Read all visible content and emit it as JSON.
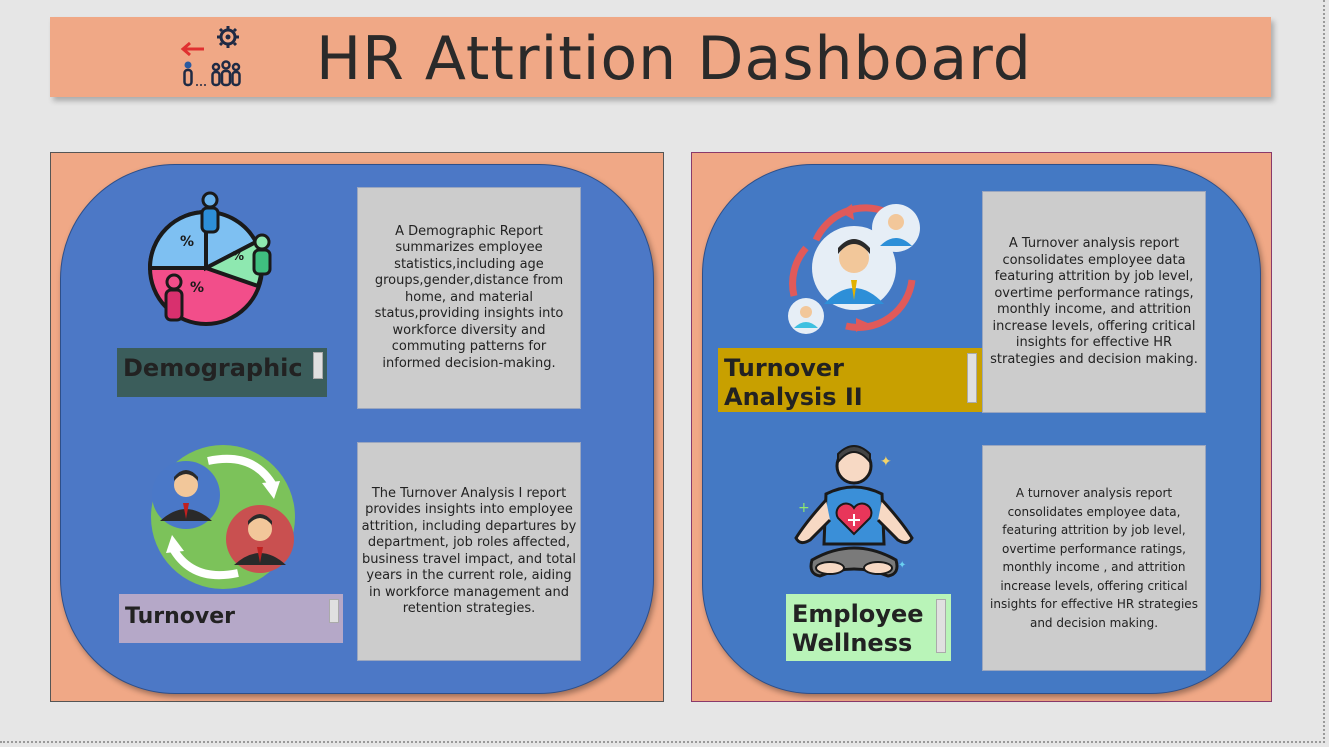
{
  "header": {
    "title": "HR Attrition Dashboard",
    "logo_icon": "hr-attrition-people-icon"
  },
  "colors": {
    "background": "#e6e6e6",
    "header": "#f0a886",
    "panel": "#f0a886",
    "blob": "#4c78c6",
    "card": "#cccccc",
    "demographic_button": "#3b5d5b",
    "turnover_button": "#b5a8c8",
    "turnover2_button": "#c8a000",
    "wellness_button": "#b9f4b8"
  },
  "sections": {
    "demographic": {
      "label": "Demographic",
      "icon": "pie-chart-people-icon",
      "description": "A Demographic Report summarizes employee statistics,including age groups,gender,distance from home, and material status,providing insights into workforce diversity and commuting patterns for informed decision-making."
    },
    "turnover": {
      "label": "Turnover",
      "icon": "employee-exchange-icon",
      "description": "The Turnover Analysis I report provides insights into employee attrition, including departures by department, job roles affected, business travel impact, and total years in the current role, aiding in workforce management and retention strategies."
    },
    "turnover2": {
      "label": "Turnover Analysis II",
      "icon": "employee-cycle-icon",
      "description": "A Turnover analysis report consolidates employee data featuring attrition by job level, overtime performance ratings, monthly income, and attrition increase levels, offering critical insights for effective HR strategies and decision making."
    },
    "wellness": {
      "label": "Employee Wellness",
      "icon": "meditation-heart-icon",
      "description": "A turnover analysis report consolidates employee data, featuring attrition by job level, overtime performance ratings, monthly income , and attrition increase levels, offering critical insights for effective HR strategies and decision making."
    }
  }
}
